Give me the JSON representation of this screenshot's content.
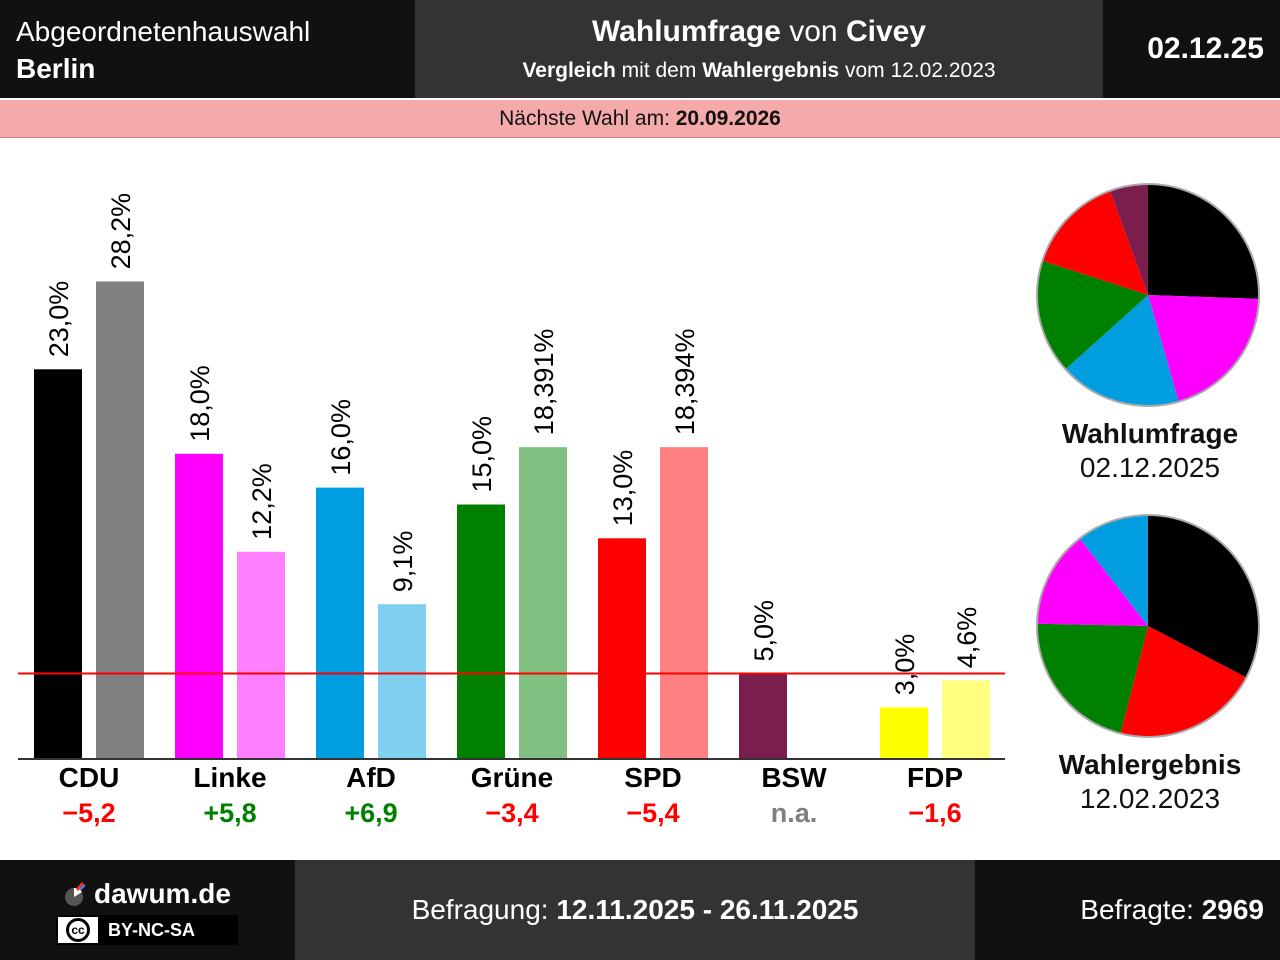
{
  "header": {
    "region_line1": "Abgeordnetenhauswahl",
    "region_line2": "Berlin",
    "title_part1": "Wahlumfrage",
    "title_part2": " von ",
    "title_part3": "Civey",
    "subtitle_part1": "Vergleich",
    "subtitle_part2": " mit dem ",
    "subtitle_part3": "Wahlergebnis",
    "subtitle_part4": " vom 12.02.2023",
    "date": "02.12.25"
  },
  "next_election": {
    "label": "Nächste Wahl am: ",
    "date": "20.09.2026"
  },
  "chart_data": {
    "type": "bar",
    "categories": [
      "CDU",
      "Linke",
      "AfD",
      "Grüne",
      "SPD",
      "BSW",
      "FDP"
    ],
    "series": [
      {
        "values": [
          23.0,
          18.0,
          16.0,
          15.0,
          13.0,
          5.0,
          3.0
        ],
        "labels": [
          "23,0%",
          "18,0%",
          "16,0%",
          "15,0%",
          "13,0%",
          "5,0%",
          "3,0%"
        ]
      },
      {
        "values": [
          28.2,
          12.2,
          9.1,
          18.391,
          18.394,
          null,
          4.6
        ],
        "labels": [
          "28,2%",
          "12,2%",
          "9,1%",
          "18,391%",
          "18,394%",
          "",
          "4,6%"
        ]
      }
    ],
    "colors_poll": [
      "#000000",
      "#ff00ff",
      "#009ee0",
      "#008000",
      "#ff0000",
      "#7a1e4e",
      "#ffff00"
    ],
    "colors_result": [
      "#808080",
      "#ff80ff",
      "#80cfef",
      "#80c080",
      "#ff8080",
      "#bc8ea6",
      "#ffff80"
    ],
    "diffs": [
      "−5,2",
      "+5,8",
      "+6,9",
      "−3,4",
      "−5,4",
      "n.a.",
      "−1,6"
    ],
    "diff_colors": [
      "#ff0000",
      "#008000",
      "#008000",
      "#ff0000",
      "#ff0000",
      "#808080",
      "#ff0000"
    ],
    "threshold": 5,
    "threshold_color": "#ff0000",
    "ylim": [
      0,
      30
    ],
    "pies": [
      {
        "order": [
          "CDU",
          "Linke",
          "AfD",
          "Grüne",
          "SPD",
          "BSW"
        ],
        "values": [
          23.0,
          18.0,
          16.0,
          15.0,
          13.0,
          5.0
        ],
        "colors": [
          "#000000",
          "#ff00ff",
          "#009ee0",
          "#008000",
          "#ff0000",
          "#7a1e4e"
        ]
      },
      {
        "order": [
          "CDU",
          "SPD",
          "Grüne",
          "Linke",
          "AfD"
        ],
        "values": [
          28.2,
          18.394,
          18.391,
          12.2,
          9.1
        ],
        "colors": [
          "#000000",
          "#ff0000",
          "#008000",
          "#ff00ff",
          "#009ee0"
        ]
      }
    ]
  },
  "pie_labels": {
    "poll_title": "Wahlumfrage",
    "poll_date": "02.12.2025",
    "result_title": "Wahlergebnis",
    "result_date": "12.02.2023"
  },
  "footer": {
    "logo": "dawum.de",
    "cc_symbol": "cc",
    "license": "BY-NC-SA",
    "survey_label": "Befragung: ",
    "survey_period": "12.11.2025 - 26.11.2025",
    "respondents_label": "Befragte: ",
    "respondents": "2969"
  }
}
